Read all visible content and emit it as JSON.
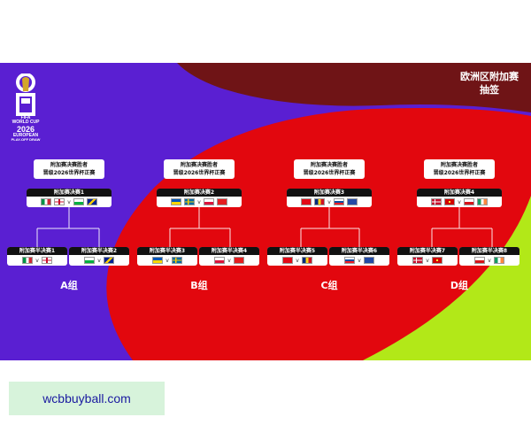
{
  "title": {
    "line1": "欧洲区附加赛",
    "line2": "抽签"
  },
  "logo": {
    "line1": "WORLD CUP",
    "line2": "2026",
    "line3": "EUROPEAN",
    "line4": "PLAY-OFF DRAW",
    "badge": "FIFA"
  },
  "winner_label": {
    "line1": "附加赛决赛胜者",
    "line2": "晋级2026世界杯正赛"
  },
  "paths": [
    {
      "group": "A组",
      "final": "附加赛决赛1",
      "semis": [
        {
          "label": "附加赛半决赛1",
          "flags": [
            "italy",
            "northern-ireland"
          ]
        },
        {
          "label": "附加赛半决赛2",
          "flags": [
            "wales",
            "bosnia"
          ]
        }
      ]
    },
    {
      "group": "B组",
      "final": "附加赛决赛2",
      "semis": [
        {
          "label": "附加赛半决赛3",
          "flags": [
            "ukraine",
            "sweden"
          ]
        },
        {
          "label": "附加赛半决赛4",
          "flags": [
            "poland",
            "albania"
          ]
        }
      ]
    },
    {
      "group": "C组",
      "final": "附加赛决赛3",
      "semis": [
        {
          "label": "附加赛半决赛5",
          "flags": [
            "turkey",
            "romania"
          ]
        },
        {
          "label": "附加赛半决赛6",
          "flags": [
            "slovakia",
            "kosovo"
          ]
        }
      ]
    },
    {
      "group": "D组",
      "final": "附加赛决赛4",
      "semis": [
        {
          "label": "附加赛半决赛7",
          "flags": [
            "denmark",
            "north-macedonia"
          ]
        },
        {
          "label": "附加赛半决赛8",
          "flags": [
            "czechia",
            "ireland"
          ]
        }
      ]
    }
  ],
  "vs": "v",
  "watermark": "wcbbuyball.com",
  "colors": {
    "purple": "#5a1fd2",
    "red": "#e2070e",
    "maroon": "#6f1416",
    "lime": "#b2e818"
  }
}
